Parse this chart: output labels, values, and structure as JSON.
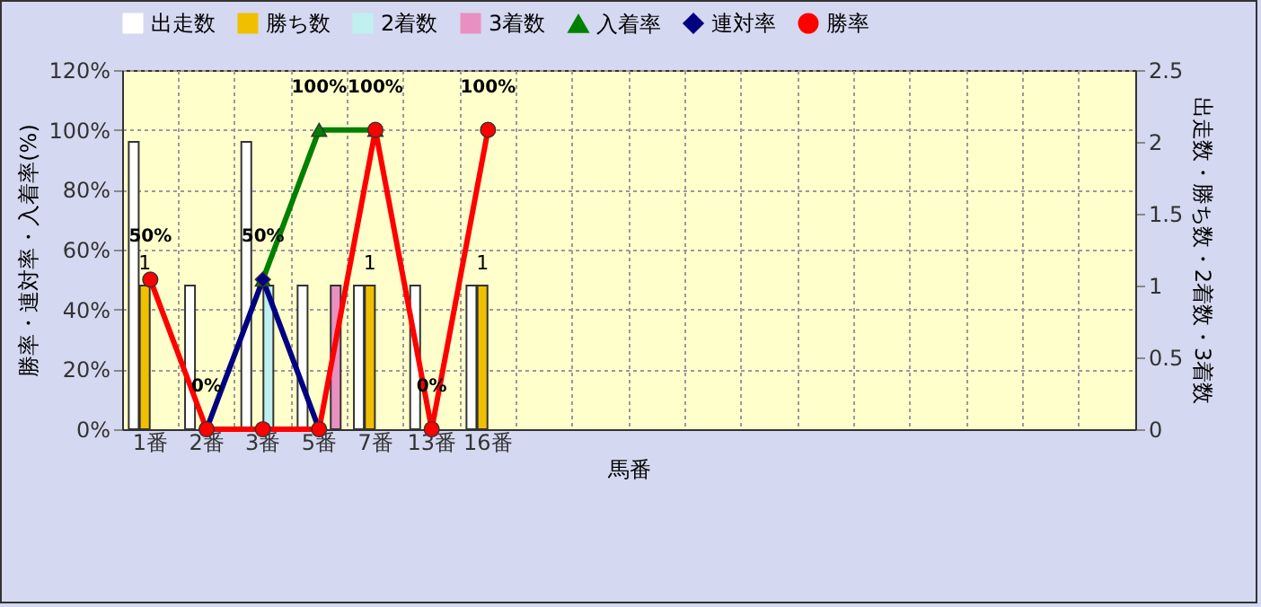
{
  "chart_data": {
    "type": "bar",
    "xlabel": "馬番",
    "ylabel": "勝率・連対率・入着率(%)",
    "y2label": "出走数・勝ち数・2着数・3着数",
    "categories": [
      "1番",
      "2番",
      "3番",
      "5番",
      "7番",
      "13番",
      "16番",
      null,
      null,
      null,
      null,
      null,
      null,
      null,
      null,
      null,
      null,
      null
    ],
    "ylim": [
      0,
      120
    ],
    "yticks": [
      {
        "value": 0,
        "label": "0%"
      },
      {
        "value": 20,
        "label": "20%"
      },
      {
        "value": 40,
        "label": "40%"
      },
      {
        "value": 60,
        "label": "60%"
      },
      {
        "value": 80,
        "label": "80%"
      },
      {
        "value": 100,
        "label": "100%"
      },
      {
        "value": 120,
        "label": "120%"
      }
    ],
    "y2lim": [
      0,
      2.5
    ],
    "y2ticks": [
      0,
      0.5,
      1,
      1.5,
      2,
      2.5
    ],
    "grid": true,
    "legend": "top",
    "series": [
      {
        "name": "出走数",
        "type": "bar",
        "axis": "y2",
        "color": "#ffffff",
        "values": [
          2,
          1,
          2,
          1,
          1,
          1,
          1,
          null,
          null,
          null,
          null,
          null,
          null,
          null,
          null,
          null,
          null,
          null
        ]
      },
      {
        "name": "勝ち数",
        "type": "bar",
        "axis": "y2",
        "color": "#f0c000",
        "values": [
          1,
          0,
          0,
          0,
          1,
          0,
          1,
          null,
          null,
          null,
          null,
          null,
          null,
          null,
          null,
          null,
          null,
          null
        ],
        "value_labels": [
          "1",
          null,
          null,
          null,
          "1",
          null,
          "1",
          null,
          null,
          null,
          null,
          null,
          null,
          null,
          null,
          null,
          null,
          null
        ]
      },
      {
        "name": "2着数",
        "type": "bar",
        "axis": "y2",
        "color": "#c0f0f0",
        "values": [
          0,
          0,
          1,
          0,
          0,
          0,
          0,
          null,
          null,
          null,
          null,
          null,
          null,
          null,
          null,
          null,
          null,
          null
        ]
      },
      {
        "name": "3着数",
        "type": "bar",
        "axis": "y2",
        "color": "#e890c0",
        "values": [
          0,
          0,
          0,
          1,
          0,
          0,
          0,
          null,
          null,
          null,
          null,
          null,
          null,
          null,
          null,
          null,
          null,
          null
        ]
      },
      {
        "name": "入着率",
        "type": "line",
        "marker": "triangle",
        "color": "#008000",
        "values": [
          null,
          null,
          50,
          100,
          100,
          null,
          null,
          null,
          null,
          null,
          null,
          null,
          null,
          null,
          null,
          null,
          null,
          null
        ],
        "value_labels": [
          null,
          null,
          "50%",
          "100%",
          "100%",
          null,
          null,
          null,
          null,
          null,
          null,
          null,
          null,
          null,
          null,
          null,
          null,
          null
        ]
      },
      {
        "name": "連対率",
        "type": "line",
        "marker": "diamond",
        "color": "#000080",
        "values": [
          null,
          0,
          50,
          0,
          null,
          null,
          null,
          null,
          null,
          null,
          null,
          null,
          null,
          null,
          null,
          null,
          null,
          null
        ]
      },
      {
        "name": "勝率",
        "type": "line",
        "marker": "circle",
        "color": "#ff0000",
        "values": [
          50,
          0,
          0,
          0,
          100,
          0,
          100,
          null,
          null,
          null,
          null,
          null,
          null,
          null,
          null,
          null,
          null,
          null
        ],
        "value_labels": [
          "50%",
          "0%",
          null,
          null,
          null,
          "0%",
          "100%",
          null,
          null,
          null,
          null,
          null,
          null,
          null,
          null,
          null,
          null,
          null
        ]
      }
    ]
  }
}
